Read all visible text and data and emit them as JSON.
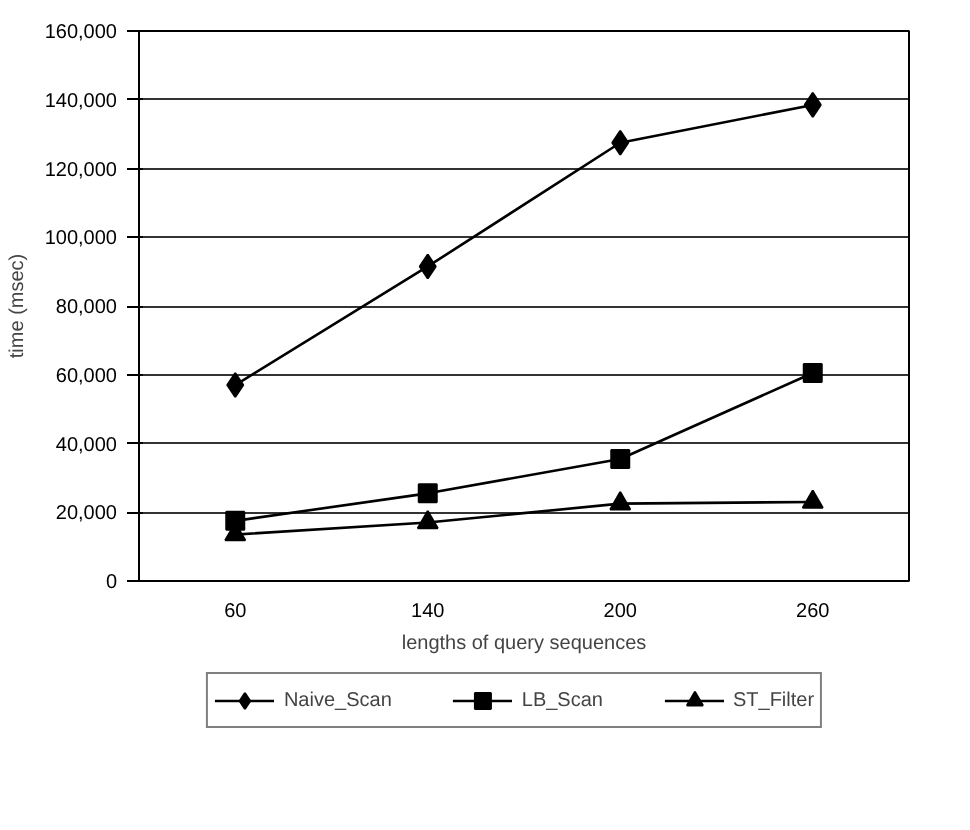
{
  "chart_data": {
    "type": "line",
    "xlabel": "lengths of query sequences",
    "ylabel": "time (msec)",
    "categories": [
      "60",
      "140",
      "200",
      "260"
    ],
    "series": [
      {
        "name": "Naive_Scan",
        "color": "#000000",
        "marker": "diamond",
        "values": [
          57000,
          91500,
          127500,
          138500
        ]
      },
      {
        "name": "LB_Scan",
        "color": "#000000",
        "marker": "square",
        "values": [
          17500,
          25500,
          35500,
          60500
        ]
      },
      {
        "name": "ST_Filter",
        "color": "#000000",
        "marker": "triangle",
        "values": [
          13500,
          17000,
          22500,
          23000
        ]
      }
    ],
    "ylim": [
      0,
      160000
    ],
    "yticks": [
      {
        "value": 0,
        "label": "0"
      },
      {
        "value": 20000,
        "label": "20,000"
      },
      {
        "value": 40000,
        "label": "40,000"
      },
      {
        "value": 60000,
        "label": "60,000"
      },
      {
        "value": 80000,
        "label": "80,000"
      },
      {
        "value": 100000,
        "label": "100,000"
      },
      {
        "value": 120000,
        "label": "120,000"
      },
      {
        "value": 140000,
        "label": "140,000"
      },
      {
        "value": 160000,
        "label": "160,000"
      }
    ],
    "grid": "y",
    "legend": "bottom",
    "line_style": "solid"
  }
}
